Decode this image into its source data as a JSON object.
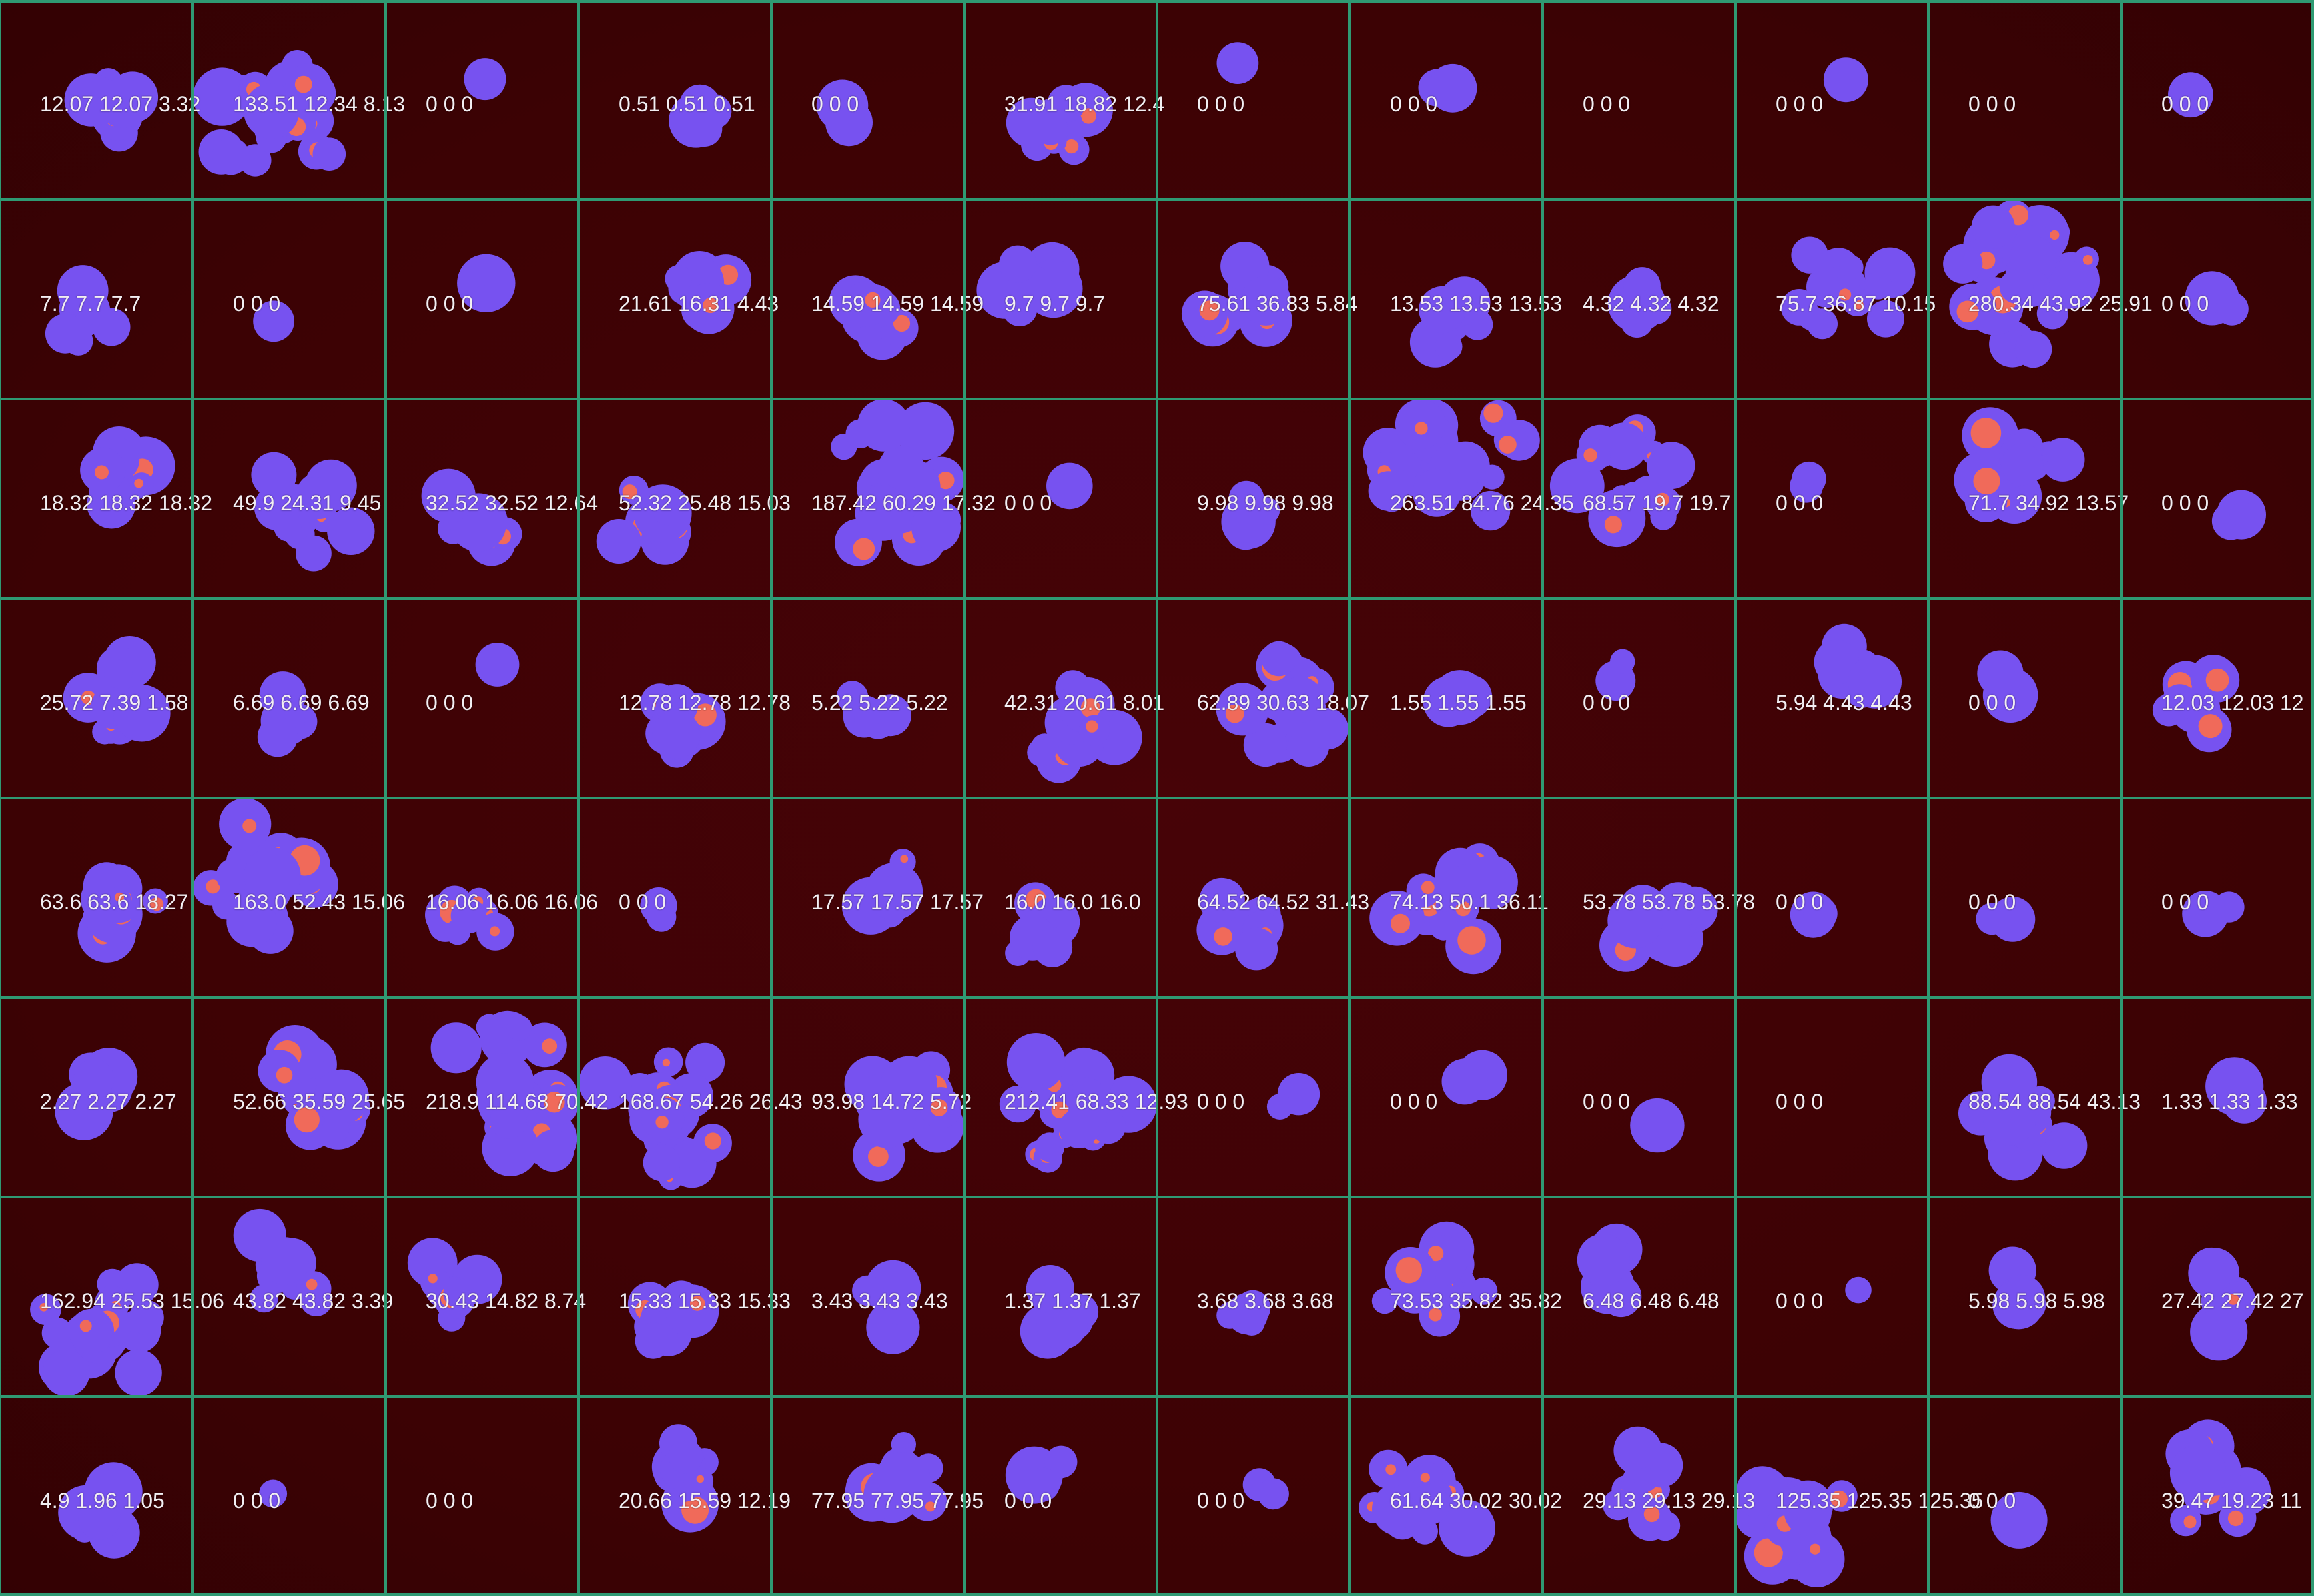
{
  "grid": {
    "cols": 12,
    "rows": 8
  },
  "colors": {
    "background": "#3f0204",
    "grid_line": "#2f9a73",
    "colony": "#7752f0",
    "spot": "#f06a5a",
    "label": "#f2eef2"
  },
  "rows": [
    [
      "12.07 12.07 3.32",
      "133.51 12.34 8.13",
      "0 0 0",
      "0.51 0.51 0.51",
      "0 0 0",
      "31.91 18.82 12.4",
      "0 0 0",
      "0 0 0",
      "0 0 0",
      "0 0 0",
      "0 0 0",
      "0 0 0"
    ],
    [
      "7.7 7.7 7.7",
      "0 0 0",
      "0 0 0",
      "21.61 16.31 4.43",
      "14.59 14.59 14.59",
      "9.7 9.7 9.7",
      "75.61 36.83 5.84",
      "13.53 13.53 13.53",
      "4.32 4.32 4.32",
      "75.7 36.87 10.15",
      "280.34 43.92 25.91",
      "0 0 0"
    ],
    [
      "18.32 18.32 18.32",
      "49.9 24.31 9.45",
      "32.52 32.52 12.64",
      "52.32 25.48 15.03",
      "187.42 60.29 17.32",
      "0 0 0",
      "9.98 9.98 9.98",
      "263.51 84.76 24.35",
      "68.57 19.7 19.7",
      "0 0 0",
      "71.7 34.92 13.57",
      "0 0 0"
    ],
    [
      "25.72 7.39 1.58",
      "6.69 6.69 6.69",
      "0 0 0",
      "12.78 12.78 12.78",
      "5.22 5.22 5.22",
      "42.31 20.61 8.01",
      "62.89 30.63 18.07",
      "1.55 1.55 1.55",
      "0 0 0",
      "5.94 4.43 4.43",
      "0 0 0",
      "12.03 12.03 12"
    ],
    [
      "63.6 63.6 18.27",
      "163.0 52.43 15.06",
      "16.06 16.06 16.06",
      "0 0 0",
      "17.57 17.57 17.57",
      "16.0 16.0 16.0",
      "64.52 64.52 31.43",
      "74.13 50.1 36.11",
      "53.78 53.78 53.78",
      "0 0 0",
      "0 0 0",
      "0 0 0"
    ],
    [
      "2.27 2.27 2.27",
      "52.66 35.59 25.65",
      "218.9 114.68 70.42",
      "168.67 54.26 26.43",
      "93.98 14.72 5.72",
      "212.41 68.33 12.93",
      "0 0 0",
      "0 0 0",
      "0 0 0",
      "0 0 0",
      "88.54 88.54 43.13",
      "1.33 1.33 1.33"
    ],
    [
      "162.94 25.53 15.06",
      "43.82 43.82 3.39",
      "30.43 14.82 8.74",
      "15.33 15.33 15.33",
      "3.43 3.43 3.43",
      "1.37 1.37 1.37",
      "3.68 3.68 3.68",
      "73.53 35.82 35.82",
      "6.48 6.48 6.48",
      "0 0 0",
      "5.98 5.98 5.98",
      "27.42 27.42 27"
    ],
    [
      "4.9 1.96 1.05",
      "0 0 0",
      "0 0 0",
      "20.66 15.59 12.19",
      "77.95 77.95 77.95",
      "0 0 0",
      "0 0 0",
      "61.64 30.02 30.02",
      "29.13 29.13 29.13",
      "125.35 125.35 125.35",
      "0 0 0",
      "39.47 19.23 11"
    ]
  ]
}
